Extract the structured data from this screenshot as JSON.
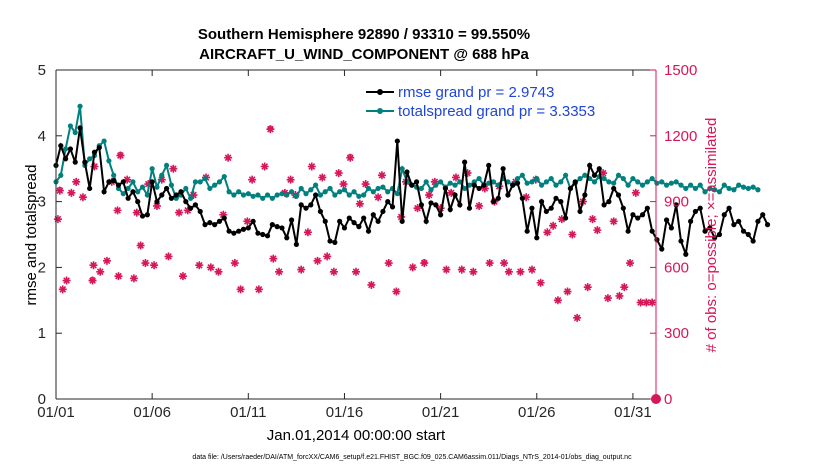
{
  "chart_data": {
    "type": "line",
    "title_line1": "Southern Hemisphere 92890 / 93310 = 99.550%",
    "title_line2": "AIRCRAFT_U_WIND_COMPONENT @ 688 hPa",
    "xlabel": "Jan.01,2014 00:00:00 start",
    "ylabel_left": "rmse and totalspread",
    "ylabel_right": "# of obs: o=possible; ×=assimilated",
    "footer": "data file: /Users/raeder/DAI/ATM_forcXX/CAM6_setup/f.e21.FHIST_BGC.f09_025.CAM6assim.011/Diags_NTrS_2014-01/obs_diag_output.nc",
    "x_tick_labels": [
      "01/01",
      "01/06",
      "01/11",
      "01/16",
      "01/21",
      "01/26",
      "01/31"
    ],
    "x_tick_days": [
      1,
      6,
      11,
      16,
      21,
      26,
      31
    ],
    "xlim": [
      1,
      32.2
    ],
    "ylim_left": [
      0,
      5
    ],
    "ylim_right": [
      0,
      1500
    ],
    "y_ticks_left": [
      "0",
      "1",
      "2",
      "3",
      "4",
      "5"
    ],
    "y_ticks_right": [
      "0",
      "300",
      "600",
      "900",
      "1200",
      "1500"
    ],
    "colors": {
      "rmse": "#000000",
      "spread": "#00807f",
      "obs": "#d6175a",
      "legend_text": "#1f45d9",
      "right_axis": "#d6175a"
    },
    "legend": [
      {
        "name": "rmse grand pr = 2.9743",
        "color": "#000000"
      },
      {
        "name": "totalspread grand pr = 3.3353",
        "color": "#00807f"
      }
    ],
    "series": [
      {
        "name": "rmse",
        "start_day": 1.0,
        "step_day": 0.25,
        "values": [
          3.55,
          3.85,
          3.65,
          3.8,
          3.6,
          4.12,
          3.6,
          3.2,
          3.75,
          3.82,
          3.15,
          3.3,
          3.32,
          3.25,
          3.3,
          3.05,
          3.15,
          3.0,
          2.78,
          2.8,
          3.3,
          3.0,
          3.1,
          3.2,
          3.05,
          3.1,
          3.15,
          3.0,
          2.9,
          2.95,
          2.85,
          2.65,
          2.68,
          2.65,
          2.7,
          2.75,
          2.55,
          2.52,
          2.55,
          2.58,
          2.6,
          2.7,
          2.52,
          2.5,
          2.48,
          2.65,
          2.62,
          2.6,
          2.45,
          2.72,
          2.35,
          2.95,
          2.9,
          2.95,
          3.1,
          2.85,
          2.7,
          2.4,
          2.38,
          2.7,
          2.6,
          2.75,
          2.68,
          2.62,
          2.75,
          2.55,
          2.8,
          2.7,
          2.85,
          3.0,
          2.92,
          3.92,
          2.7,
          3.45,
          3.25,
          3.3,
          2.95,
          2.7,
          2.98,
          2.95,
          2.8,
          3.2,
          2.88,
          3.1,
          2.95,
          3.6,
          2.9,
          3.25,
          3.2,
          3.25,
          3.55,
          3.0,
          3.05,
          3.5,
          3.1,
          3.25,
          3.28,
          3.05,
          2.55,
          2.9,
          2.45,
          3.0,
          2.85,
          2.9,
          3.05,
          3.0,
          2.75,
          3.2,
          3.3,
          2.85,
          3.1,
          3.55,
          3.4,
          3.5,
          2.95,
          3.0,
          3.2,
          3.1,
          2.9,
          2.55,
          2.8,
          2.75,
          2.8,
          2.9,
          2.55,
          2.42,
          2.28,
          2.72,
          2.6,
          2.95,
          2.4,
          2.2,
          2.7,
          2.85,
          2.9,
          2.55,
          2.6,
          2.45,
          2.5,
          2.8,
          2.9,
          2.65,
          2.7,
          2.55,
          2.5,
          2.4,
          2.7,
          2.8,
          2.65
        ]
      },
      {
        "name": "totalspread",
        "start_day": 1.0,
        "step_day": 0.25,
        "values": [
          3.3,
          3.4,
          3.8,
          4.15,
          4.05,
          4.45,
          3.55,
          3.65,
          3.7,
          3.85,
          3.92,
          3.62,
          3.4,
          3.2,
          3.12,
          3.2,
          3.3,
          3.15,
          3.22,
          3.1,
          3.5,
          3.22,
          3.4,
          3.55,
          3.25,
          3.05,
          3.1,
          3.2,
          3.05,
          3.3,
          3.3,
          3.35,
          3.2,
          3.25,
          3.3,
          3.38,
          3.15,
          3.1,
          3.15,
          3.1,
          3.12,
          3.08,
          3.1,
          3.05,
          3.1,
          3.05,
          3.1,
          3.12,
          3.1,
          3.15,
          3.08,
          3.2,
          3.12,
          3.18,
          3.25,
          3.1,
          3.15,
          3.2,
          3.1,
          3.15,
          3.18,
          3.1,
          3.15,
          3.08,
          3.1,
          3.2,
          3.15,
          3.2,
          3.22,
          3.15,
          3.2,
          3.12,
          3.5,
          3.3,
          3.25,
          3.22,
          3.2,
          3.3,
          3.18,
          3.25,
          3.3,
          3.22,
          3.28,
          3.25,
          3.3,
          3.2,
          3.25,
          3.3,
          3.35,
          3.25,
          3.28,
          3.3,
          3.25,
          3.35,
          3.3,
          3.25,
          3.35,
          3.4,
          3.28,
          3.3,
          3.35,
          3.25,
          3.3,
          3.35,
          3.25,
          3.3,
          3.4,
          3.2,
          3.28,
          3.35,
          3.4,
          3.35,
          3.3,
          3.38,
          3.35,
          3.3,
          3.28,
          3.4,
          3.35,
          3.25,
          3.35,
          3.3,
          3.25,
          3.3,
          3.35,
          3.28,
          3.3,
          3.25,
          3.28,
          3.3,
          3.25,
          3.2,
          3.25,
          3.2,
          3.25,
          3.15,
          3.2,
          3.18,
          3.15,
          3.25,
          3.2,
          3.18,
          3.25,
          3.22,
          3.2,
          3.22,
          3.18
        ]
      }
    ],
    "obs_assimilated": [
      [
        1.1,
        820
      ],
      [
        1.2,
        950
      ],
      [
        1.35,
        500
      ],
      [
        1.55,
        540
      ],
      [
        1.8,
        940
      ],
      [
        2.05,
        990
      ],
      [
        2.4,
        920
      ],
      [
        2.9,
        540
      ],
      [
        2.95,
        610
      ],
      [
        3.0,
        1060
      ],
      [
        3.3,
        580
      ],
      [
        3.65,
        630
      ],
      [
        3.9,
        990
      ],
      [
        4.2,
        860
      ],
      [
        4.25,
        560
      ],
      [
        4.35,
        1110
      ],
      [
        4.7,
        1000
      ],
      [
        5.05,
        550
      ],
      [
        5.2,
        850
      ],
      [
        5.4,
        700
      ],
      [
        5.65,
        620
      ],
      [
        5.8,
        980
      ],
      [
        6.1,
        610
      ],
      [
        6.25,
        880
      ],
      [
        6.5,
        1000
      ],
      [
        6.85,
        650
      ],
      [
        7.1,
        1050
      ],
      [
        7.4,
        850
      ],
      [
        7.6,
        560
      ],
      [
        7.85,
        860
      ],
      [
        8.15,
        930
      ],
      [
        8.45,
        610
      ],
      [
        8.8,
        1010
      ],
      [
        9.05,
        600
      ],
      [
        9.45,
        580
      ],
      [
        9.7,
        840
      ],
      [
        9.95,
        1100
      ],
      [
        10.3,
        620
      ],
      [
        10.6,
        500
      ],
      [
        10.95,
        810
      ],
      [
        11.2,
        1000
      ],
      [
        11.55,
        500
      ],
      [
        11.85,
        1060
      ],
      [
        12.15,
        1230
      ],
      [
        12.3,
        640
      ],
      [
        12.6,
        580
      ],
      [
        12.9,
        940
      ],
      [
        13.2,
        1000
      ],
      [
        13.45,
        930
      ],
      [
        13.75,
        590
      ],
      [
        14.1,
        760
      ],
      [
        14.3,
        1060
      ],
      [
        14.6,
        630
      ],
      [
        14.85,
        1010
      ],
      [
        15.1,
        650
      ],
      [
        15.45,
        580
      ],
      [
        15.7,
        1030
      ],
      [
        15.95,
        980
      ],
      [
        16.3,
        1100
      ],
      [
        16.6,
        580
      ],
      [
        16.8,
        890
      ],
      [
        17.1,
        980
      ],
      [
        17.4,
        520
      ],
      [
        17.75,
        920
      ],
      [
        17.95,
        1020
      ],
      [
        18.3,
        620
      ],
      [
        18.7,
        490
      ],
      [
        18.95,
        830
      ],
      [
        19.2,
        990
      ],
      [
        19.55,
        600
      ],
      [
        19.8,
        870
      ],
      [
        20.15,
        620
      ],
      [
        20.4,
        930
      ],
      [
        20.7,
        990
      ],
      [
        21.0,
        870
      ],
      [
        21.3,
        590
      ],
      [
        21.55,
        940
      ],
      [
        21.8,
        1010
      ],
      [
        22.1,
        590
      ],
      [
        22.4,
        1030
      ],
      [
        22.7,
        580
      ],
      [
        23.0,
        880
      ],
      [
        23.3,
        960
      ],
      [
        23.55,
        620
      ],
      [
        23.8,
        900
      ],
      [
        24.05,
        970
      ],
      [
        24.3,
        620
      ],
      [
        24.55,
        580
      ],
      [
        24.9,
        990
      ],
      [
        25.15,
        580
      ],
      [
        25.45,
        920
      ],
      [
        25.75,
        590
      ],
      [
        25.95,
        1000
      ],
      [
        26.2,
        530
      ],
      [
        26.55,
        760
      ],
      [
        26.85,
        790
      ],
      [
        27.1,
        450
      ],
      [
        27.3,
        820
      ],
      [
        27.6,
        490
      ],
      [
        27.85,
        750
      ],
      [
        28.1,
        370
      ],
      [
        28.4,
        900
      ],
      [
        28.65,
        510
      ],
      [
        28.9,
        820
      ],
      [
        29.15,
        770
      ],
      [
        29.45,
        1030
      ],
      [
        29.7,
        460
      ],
      [
        30.0,
        810
      ],
      [
        30.3,
        470
      ],
      [
        30.55,
        510
      ],
      [
        30.85,
        620
      ],
      [
        31.15,
        940
      ],
      [
        31.4,
        440
      ],
      [
        31.7,
        440
      ],
      [
        32.0,
        440
      ]
    ],
    "obs_possible": [
      [
        1.2,
        950
      ],
      [
        2.9,
        540
      ],
      [
        4.35,
        1110
      ],
      [
        12.15,
        1230
      ],
      [
        16.3,
        1100
      ],
      [
        20.15,
        620
      ]
    ],
    "obs_zero_marker_day": 32.2
  }
}
